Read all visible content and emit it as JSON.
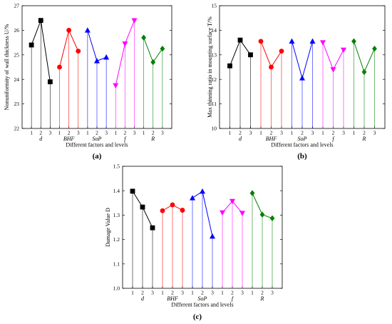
{
  "chart_data": [
    {
      "type": "line",
      "panel_label": "(a)",
      "ylabel": "Nonuniformity of wall thickness U/%",
      "xlabel": "Different factors and levels",
      "ylim": [
        22,
        27
      ],
      "yticks": [
        "22",
        "23",
        "24",
        "25",
        "26",
        "27"
      ],
      "level_ticks": [
        "1",
        "2",
        "3"
      ],
      "factors": [
        "d",
        "BHF",
        "SoP",
        "f",
        "R"
      ],
      "series": [
        {
          "factor": "d",
          "color": "#000000",
          "marker": "square",
          "values": [
            25.4,
            26.4,
            23.9
          ]
        },
        {
          "factor": "BHF",
          "color": "#ff0000",
          "marker": "circle",
          "values": [
            24.5,
            26.0,
            25.15
          ]
        },
        {
          "factor": "SoP",
          "color": "#0000ff",
          "marker": "triangle-up",
          "values": [
            26.0,
            24.75,
            24.9
          ]
        },
        {
          "factor": "f",
          "color": "#ff00ff",
          "marker": "triangle-down",
          "values": [
            23.75,
            25.45,
            26.4
          ]
        },
        {
          "factor": "R",
          "color": "#008000",
          "marker": "diamond",
          "values": [
            25.7,
            24.7,
            25.25
          ]
        }
      ]
    },
    {
      "type": "line",
      "panel_label": "(b)",
      "ylabel": "Max thinning ratio in mounting surface T/%",
      "xlabel": "Different factors and levels",
      "ylim": [
        10,
        15
      ],
      "yticks": [
        "10",
        "11",
        "12",
        "13",
        "14",
        "15"
      ],
      "level_ticks": [
        "1",
        "2",
        "3"
      ],
      "factors": [
        "d",
        "BHF",
        "SoP",
        "f",
        "R"
      ],
      "series": [
        {
          "factor": "d",
          "color": "#000000",
          "marker": "square",
          "values": [
            12.55,
            13.6,
            13.0
          ]
        },
        {
          "factor": "BHF",
          "color": "#ff0000",
          "marker": "circle",
          "values": [
            13.55,
            12.5,
            13.15
          ]
        },
        {
          "factor": "SoP",
          "color": "#0000ff",
          "marker": "triangle-up",
          "values": [
            13.55,
            12.05,
            13.55
          ]
        },
        {
          "factor": "f",
          "color": "#ff00ff",
          "marker": "triangle-down",
          "values": [
            13.5,
            12.4,
            13.2
          ]
        },
        {
          "factor": "R",
          "color": "#008000",
          "marker": "diamond",
          "values": [
            13.55,
            12.3,
            13.25
          ]
        }
      ]
    },
    {
      "type": "line",
      "panel_label": "(c)",
      "ylabel": "Damage Value D",
      "xlabel": "Different factors and levels",
      "ylim": [
        1.0,
        1.5
      ],
      "yticks": [
        "1.0",
        "1.1",
        "1.2",
        "1.3",
        "1.4",
        "1.5"
      ],
      "level_ticks": [
        "1",
        "2",
        "3"
      ],
      "factors": [
        "d",
        "BHF",
        "SoP",
        "f",
        "R"
      ],
      "series": [
        {
          "factor": "d",
          "color": "#000000",
          "marker": "square",
          "values": [
            1.398,
            1.333,
            1.248
          ]
        },
        {
          "factor": "BHF",
          "color": "#ff0000",
          "marker": "circle",
          "values": [
            1.318,
            1.342,
            1.32
          ]
        },
        {
          "factor": "SoP",
          "color": "#0000ff",
          "marker": "triangle-up",
          "values": [
            1.37,
            1.397,
            1.213
          ]
        },
        {
          "factor": "f",
          "color": "#ff00ff",
          "marker": "triangle-down",
          "values": [
            1.31,
            1.357,
            1.308
          ]
        },
        {
          "factor": "R",
          "color": "#008000",
          "marker": "diamond",
          "values": [
            1.39,
            1.302,
            1.287
          ]
        }
      ]
    }
  ]
}
